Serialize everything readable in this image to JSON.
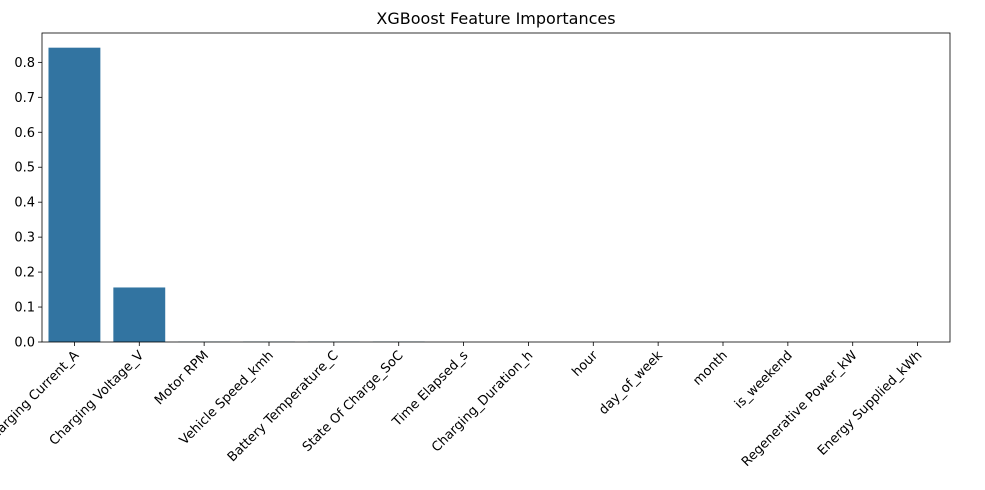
{
  "chart_data": {
    "type": "bar",
    "title": "XGBoost Feature Importances",
    "xlabel": "",
    "ylabel": "",
    "categories": [
      "Charging Current_A",
      "Charging Voltage_V",
      "Motor RPM",
      "Vehicle Speed_kmh",
      "Battery Temperature_C",
      "State Of Charge_SoC",
      "Time Elapsed_s",
      "Charging_Duration_h",
      "hour",
      "day_of_week",
      "month",
      "is_weekend",
      "Regenerative Power_kW",
      "Energy Supplied_kWh"
    ],
    "values": [
      0.842,
      0.156,
      0.001,
      0.001,
      0.001,
      0.001,
      0,
      0,
      0,
      0,
      0,
      0,
      0,
      0
    ],
    "ylim": [
      0,
      0.884
    ],
    "yticks": [
      "0.0",
      "0.1",
      "0.2",
      "0.3",
      "0.4",
      "0.5",
      "0.6",
      "0.7",
      "0.8"
    ],
    "grid": false,
    "bar_color": "#3274a1",
    "xtick_rotation": 45
  }
}
